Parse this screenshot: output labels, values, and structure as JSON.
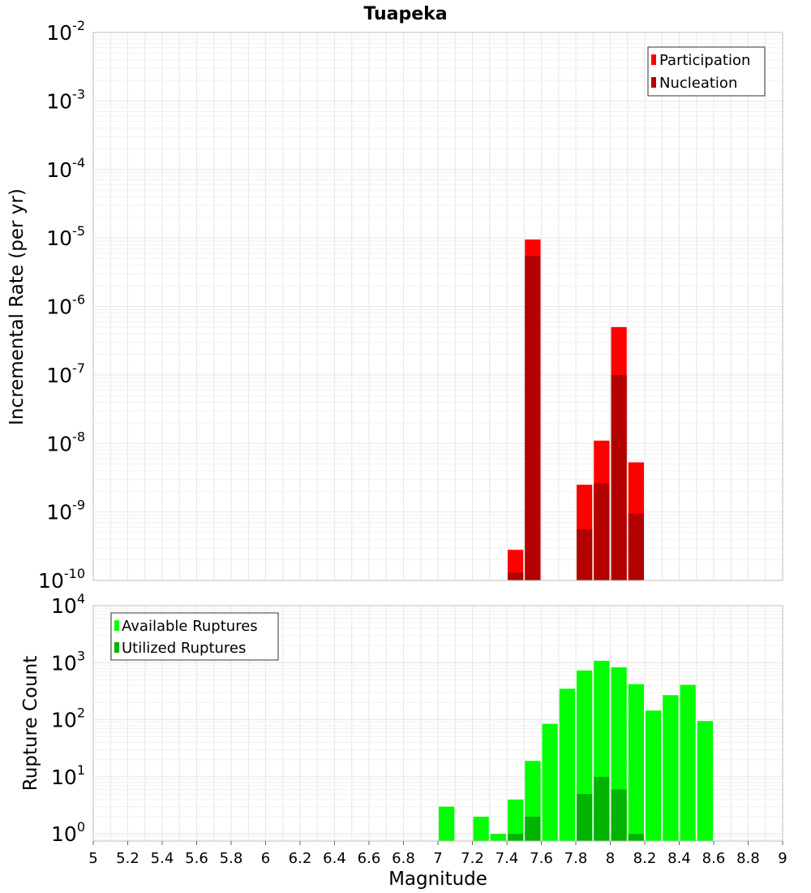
{
  "title": "Tuapeka",
  "x_axis_label": "Magnitude",
  "chart_data": [
    {
      "type": "bar",
      "title": "Tuapeka",
      "xlabel": "Magnitude",
      "ylabel": "Incremental Rate (per yr)",
      "yscale": "log",
      "xlim": [
        5,
        9
      ],
      "ylim": [
        1e-10,
        0.01
      ],
      "y_tick_exponents": [
        -10,
        -9,
        -8,
        -7,
        -6,
        -5,
        -4,
        -3,
        -2
      ],
      "grid": true,
      "legend_position": "top-right",
      "series": [
        {
          "name": "Participation",
          "color": "#ff0000",
          "x": [
            7.45,
            7.55,
            7.85,
            7.95,
            8.05,
            8.15
          ],
          "values": [
            2.8e-10,
            9.5e-06,
            2.5e-09,
            1.1e-08,
            5e-07,
            5.3e-09
          ]
        },
        {
          "name": "Nucleation",
          "color": "#b30000",
          "x": [
            7.45,
            7.55,
            7.85,
            7.95,
            8.05,
            8.15
          ],
          "values": [
            1.3e-10,
            5.5e-06,
            5.6e-10,
            2.6e-09,
            1e-07,
            9.5e-10
          ]
        }
      ]
    },
    {
      "type": "bar",
      "xlabel": "Magnitude",
      "ylabel": "Rupture Count",
      "yscale": "log",
      "xlim": [
        5,
        9
      ],
      "ylim": [
        0.75,
        10000
      ],
      "y_tick_exponents": [
        0,
        1,
        2,
        3,
        4
      ],
      "x_ticks": [
        "5",
        "5.2",
        "5.4",
        "5.6",
        "5.8",
        "6",
        "6.2",
        "6.4",
        "6.6",
        "6.8",
        "7",
        "7.2",
        "7.4",
        "7.6",
        "7.8",
        "8",
        "8.2",
        "8.4",
        "8.6",
        "8.8",
        "9"
      ],
      "grid": true,
      "legend_position": "top-left",
      "series": [
        {
          "name": "Available Ruptures",
          "color": "#00ff00",
          "x": [
            7.05,
            7.25,
            7.35,
            7.45,
            7.55,
            7.65,
            7.75,
            7.85,
            7.95,
            8.05,
            8.15,
            8.25,
            8.35,
            8.45,
            8.55
          ],
          "values": [
            3,
            2,
            1,
            4,
            19,
            85,
            350,
            730,
            1080,
            830,
            420,
            145,
            270,
            410,
            95
          ]
        },
        {
          "name": "Utilized Ruptures",
          "color": "#00b300",
          "x": [
            7.45,
            7.55,
            7.85,
            7.95,
            8.05,
            8.15
          ],
          "values": [
            1,
            2,
            5,
            10,
            6,
            1
          ]
        }
      ]
    }
  ]
}
